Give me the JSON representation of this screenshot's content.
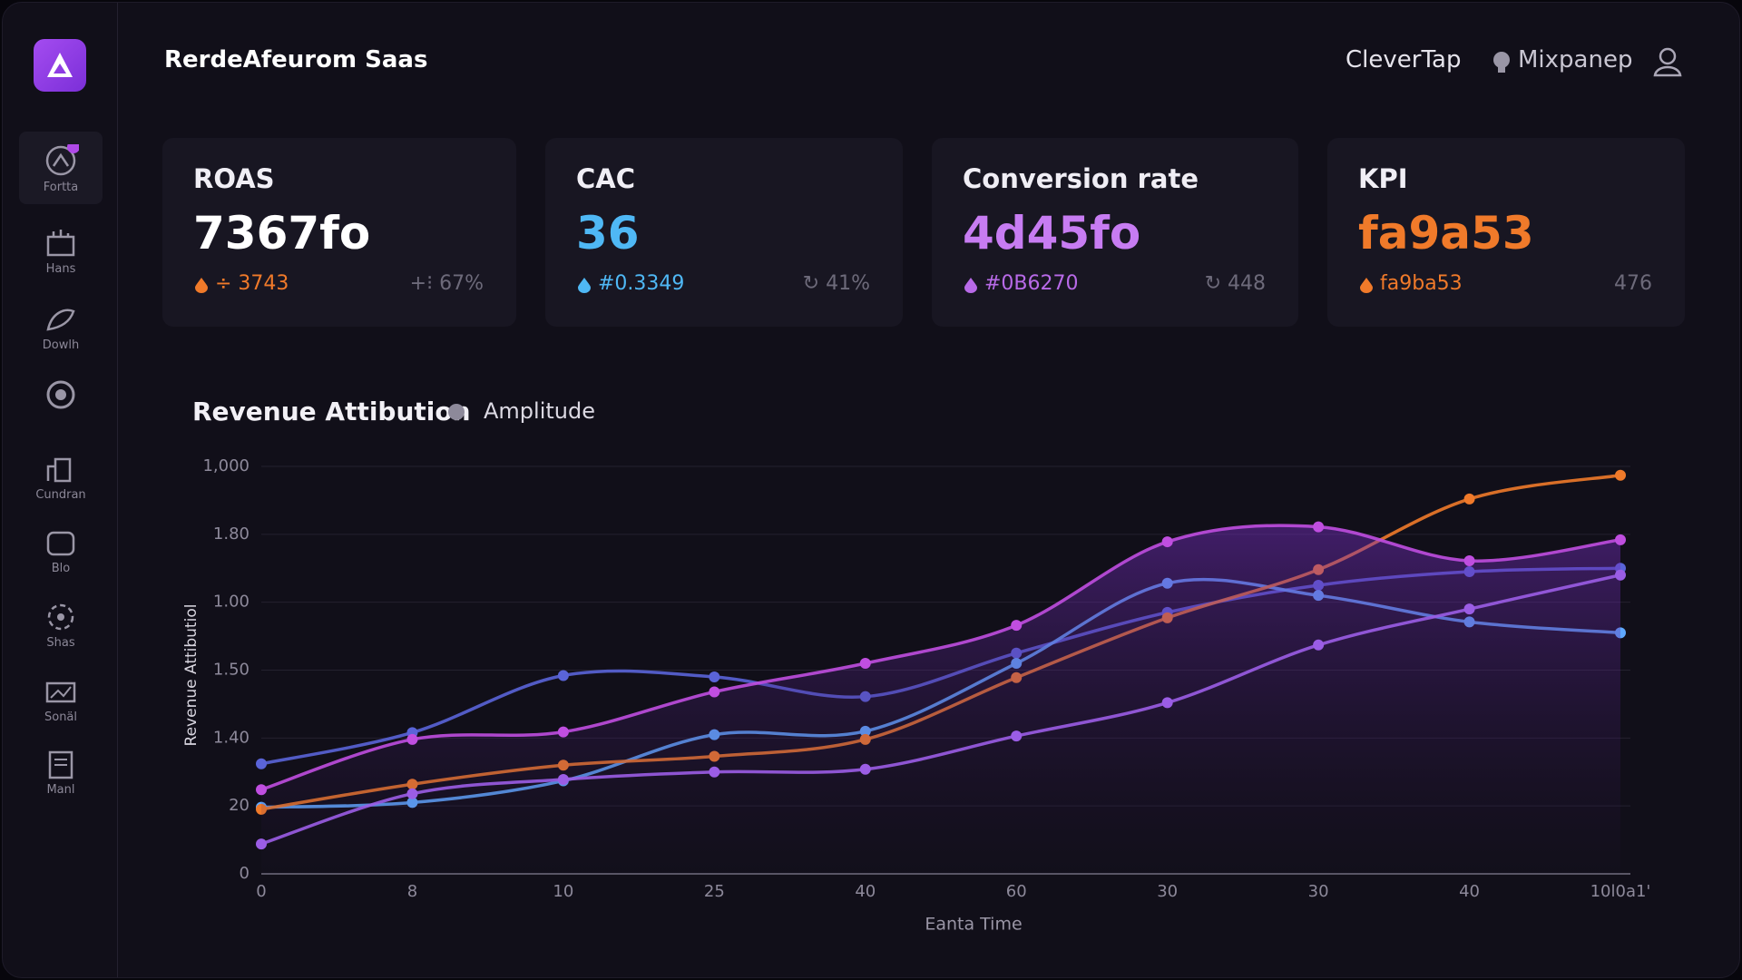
{
  "header": {
    "title": "RerdeAfeurom Saas",
    "links": [
      "CleverTap",
      "Mixpanep"
    ]
  },
  "sidebar": [
    "Fortta",
    "Hans",
    "Dowlh",
    "Cundran",
    "Blo",
    "Shas",
    "Sonäl",
    "Manl"
  ],
  "kpis": [
    {
      "label": "ROAS",
      "value": "7367fo",
      "color": "#ffffff",
      "accent": "#f07a2a",
      "delta": "÷ 3743",
      "change": "+⁝ 67%"
    },
    {
      "label": "CAC",
      "value": "36",
      "color": "#4fb8f5",
      "accent": "#4fb8f5",
      "delta": "#0.3349",
      "change": "↻ 41%"
    },
    {
      "label": "Conversion rate",
      "value": "4d45fo",
      "color": "#c77cf2",
      "accent": "#b86ae8",
      "delta": "#0B6270",
      "change": "↻ 448"
    },
    {
      "label": "KPI",
      "value": "fa9a53",
      "color": "#f07a2a",
      "accent": "#f07a2a",
      "delta": "fa9ba53",
      "change": "476"
    }
  ],
  "chart_data": {
    "type": "line",
    "title": "Revenue Attibution",
    "source": "Amplitude",
    "y_label": "Revenue Attibutiol",
    "x_label": "Eanta Time",
    "categories": [
      "0",
      "8",
      "10",
      "25",
      "40",
      "60",
      "30",
      "30",
      "40",
      "10l0a1'"
    ],
    "ylim": [
      0,
      6
    ],
    "yticks": [
      0,
      {
        "value": 1,
        "label": "20"
      },
      {
        "value": 2,
        "label": "1.40"
      },
      {
        "value": 3,
        "label": "1.50"
      },
      {
        "value": 4,
        "label": "1.00"
      },
      {
        "value": 5,
        "label": "1.80"
      },
      {
        "value": 6,
        "label": "1,000"
      }
    ],
    "grid": true,
    "series": [
      {
        "color": "#5a64d8",
        "values": [
          1.62,
          2.08,
          2.92,
          2.9,
          2.61,
          3.25,
          3.85,
          4.25,
          4.45,
          4.5
        ]
      },
      {
        "color": "#5fa8ff",
        "values": [
          0.98,
          1.05,
          1.37,
          2.05,
          2.1,
          3.1,
          4.28,
          4.1,
          3.71,
          3.55
        ]
      },
      {
        "color": "#f07a2a",
        "values": [
          0.95,
          1.32,
          1.6,
          1.73,
          1.98,
          2.89,
          3.77,
          4.48,
          5.52,
          5.87
        ]
      },
      {
        "color": "#c04ee0",
        "values": [
          1.24,
          1.98,
          2.09,
          2.68,
          3.1,
          3.66,
          4.89,
          5.11,
          4.61,
          4.92
        ]
      },
      {
        "color": "#9b5de5",
        "values": [
          0.44,
          1.18,
          1.39,
          1.5,
          1.54,
          2.03,
          2.52,
          3.37,
          3.9,
          4.4
        ]
      }
    ]
  }
}
